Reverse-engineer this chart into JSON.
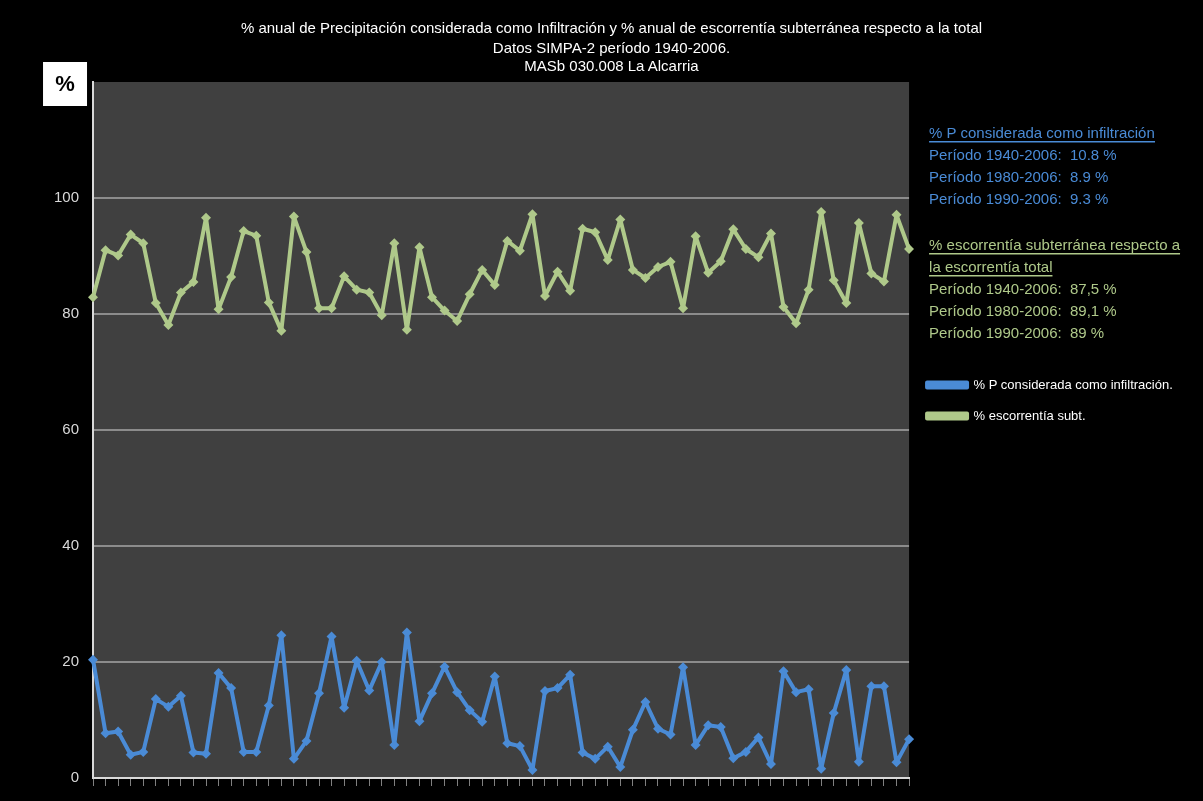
{
  "chart_data": {
    "type": "line",
    "title": "% anual de Precipitación considerada como Infiltración y % anual de escorrentía subterránea respecto a la total",
    "subtitle": "Datos SIMPA-2 período 1940-2006.\nMASb 030.008 La Alcarria",
    "ylabel": "%",
    "categories": [
      null,
      null,
      null,
      null,
      null,
      null,
      null,
      null,
      null,
      null,
      null,
      null,
      null,
      null,
      null,
      null,
      null,
      null,
      null,
      null,
      null,
      null,
      null,
      null,
      null,
      null,
      null,
      null,
      null,
      null,
      null,
      null,
      null,
      null,
      null,
      null,
      null,
      null,
      null,
      null,
      null,
      null,
      null,
      null,
      null,
      null,
      null,
      null,
      null,
      null,
      null,
      null,
      null,
      null,
      null,
      null,
      null,
      null,
      null,
      null,
      null,
      null,
      null,
      null,
      null,
      null
    ],
    "series": [
      {
        "name": "% P considerada como infiltración.",
        "color": "#4a8bd6",
        "values": [
          20.4,
          7.7,
          8,
          4,
          4.5,
          13.6,
          12.3,
          14.2,
          4.4,
          4.2,
          18.1,
          15.5,
          4.5,
          4.5,
          12.5,
          24.6,
          3.3,
          6.4,
          14.6,
          24.4,
          12.1,
          20.2,
          15.1,
          20,
          5.7,
          25.1,
          9.8,
          14.6,
          19.2,
          14.8,
          11.7,
          9.7,
          17.5,
          6,
          5.5,
          1.4,
          15,
          15.5,
          17.8,
          4.4,
          3.3,
          5.4,
          1.9,
          8.3,
          13.1,
          8.5,
          7.5,
          19.1,
          5.7,
          9.1,
          8.8,
          3.4,
          4.5,
          7,
          2.4,
          18.4,
          14.8,
          15.3,
          1.6,
          11.2,
          18.6,
          2.8,
          15.8,
          15.8,
          2.7,
          6.7
        ]
      },
      {
        "name": "% escorrentía subt.",
        "color": "#afc98a",
        "values": [
          82.9,
          91,
          90.1,
          93.7,
          92.2,
          81.9,
          78.1,
          83.7,
          85.5,
          96.6,
          80.8,
          86.4,
          94.3,
          93.5,
          82,
          77.1,
          96.8,
          90.7,
          81,
          81,
          86.5,
          84.2,
          83.7,
          79.8,
          92.2,
          77.3,
          91.5,
          82.9,
          80.6,
          78.8,
          83.4,
          87.6,
          85,
          92.6,
          90.9,
          97.2,
          83.1,
          87.3,
          84,
          94.7,
          94.1,
          89.3,
          96.3,
          87.6,
          86.2,
          88.1,
          89,
          81,
          93.4,
          87.1,
          89.1,
          94.6,
          91.2,
          89.8,
          93.9,
          81.2,
          78.4,
          84.2,
          97.6,
          85.8,
          81.9,
          95.7,
          87,
          85.6,
          97.1,
          91.2
        ]
      }
    ],
    "ylim": [
      0,
      120
    ],
    "yticks": [
      0,
      20,
      40,
      60,
      80,
      100
    ],
    "grid": "y",
    "legend": "right",
    "marker": "diamond",
    "line_style": "solid",
    "tick_labels": "y",
    "annotations": [
      "% P considerada como infiltración",
      "Período 1940-2006:  10.8 %",
      "Período 1980-2006:  8.9 %",
      "Período 1990-2006:  9.3 %",
      "% escorrentía subterránea respecto a la escorrentía total",
      "Período 1940-2006:  87,5 %",
      "Período 1980-2006:  89,1 %",
      "Período 1990-2006:  89 %"
    ]
  }
}
